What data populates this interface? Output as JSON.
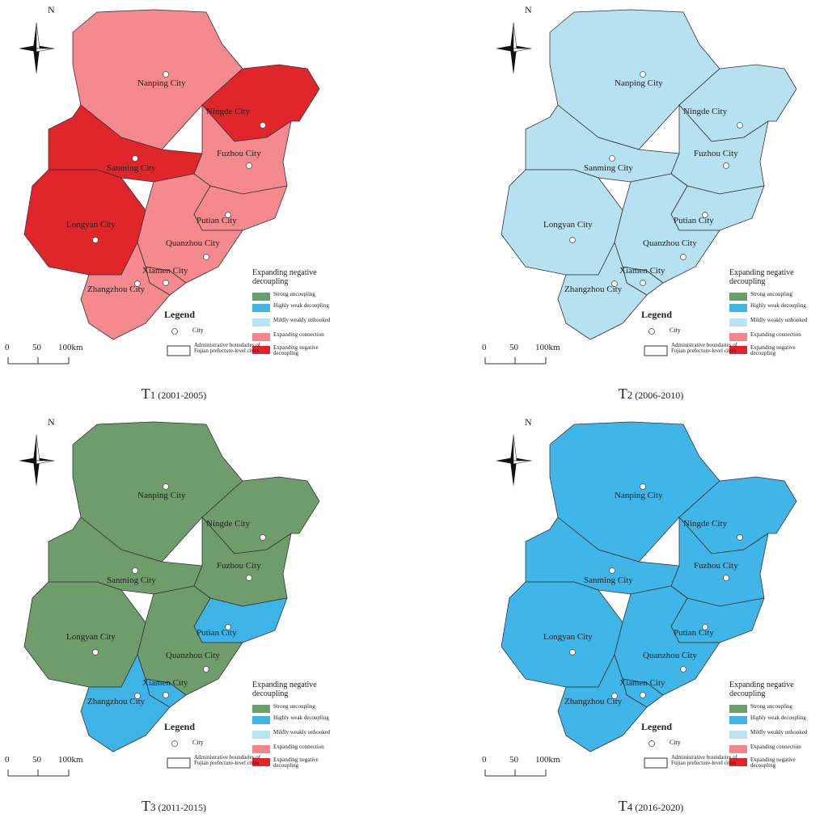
{
  "north": "N",
  "cities": [
    "Nanping City",
    "Ningde City",
    "Sanming City",
    "Fuzhou City",
    "Longyan City",
    "Putian City",
    "Quanzhou City",
    "Xiamen City",
    "Zhangzhou City"
  ],
  "legend": {
    "title": "Expanding negative decoupling",
    "heading": "Legend",
    "city": "City",
    "boundary": "Administrative boundaries of Fujian prefecture-level cities",
    "items": [
      {
        "label": "Strong uncoupling",
        "color": "#6a9e6a"
      },
      {
        "label": "Highly weak decoupling",
        "color": "#3db5e8"
      },
      {
        "label": "Mildly weakly unhooked",
        "color": "#b8e3f2"
      },
      {
        "label": "Expanding connection",
        "color": "#f4868c"
      },
      {
        "label": "Expanding negative decoupling",
        "color": "#e52229"
      }
    ]
  },
  "scale": [
    "0",
    "50",
    "100km"
  ],
  "panels": [
    {
      "caption": {
        "letter": "T",
        "index": "1",
        "period": "(2001-2005)"
      },
      "fills": [
        "#f4898e",
        "#e0262b",
        "#e0262b",
        "#f4898e",
        "#e0262b",
        "#f4898e",
        "#f4898e",
        "#f4898e",
        "#f4898e"
      ]
    },
    {
      "caption": {
        "letter": "T",
        "index": "2",
        "period": "(2006-2010)"
      },
      "fills": [
        "#b6e1f1",
        "#b6e1f1",
        "#b6e1f1",
        "#b6e1f1",
        "#b6e1f1",
        "#b6e1f1",
        "#b6e1f1",
        "#b6e1f1",
        "#b6e1f1"
      ]
    },
    {
      "caption": {
        "letter": "T",
        "index": "3",
        "period": "(2011-2015)"
      },
      "fills": [
        "#6f9c6b",
        "#6f9c6b",
        "#6f9c6b",
        "#6f9c6b",
        "#6f9c6b",
        "#3db3e6",
        "#6f9c6b",
        "#3db3e6",
        "#3db3e6"
      ]
    },
    {
      "caption": {
        "letter": "T",
        "index": "4",
        "period": "(2016-2020)"
      },
      "fills": [
        "#3fb5e8",
        "#3fb5e8",
        "#3fb5e8",
        "#3fb5e8",
        "#3fb5e8",
        "#3fb5e8",
        "#3fb5e8",
        "#3fb5e8",
        "#3fb5e8"
      ]
    }
  ]
}
